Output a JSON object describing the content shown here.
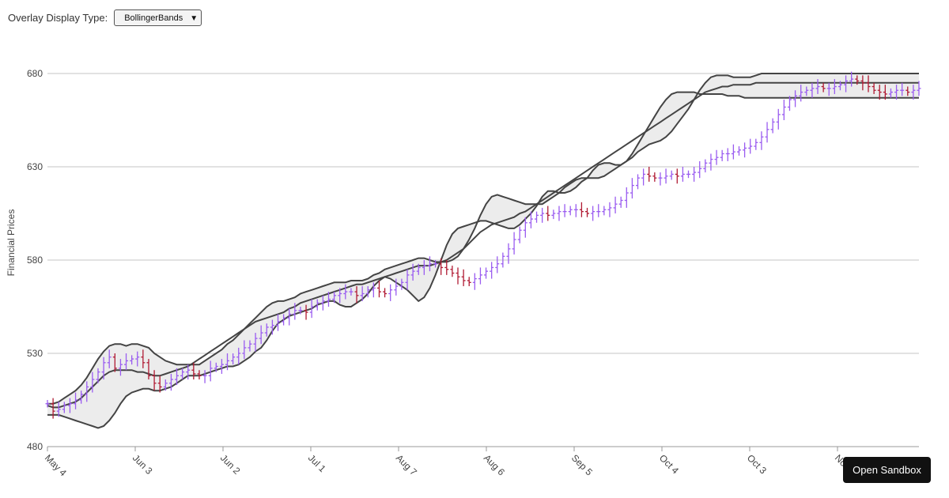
{
  "controls": {
    "overlay_label": "Overlay Display Type:",
    "overlay_selected": "BollingerBands"
  },
  "sandbox_button": "Open Sandbox",
  "colors": {
    "rising": "#9a5cf0",
    "falling": "#b01a33",
    "band_line": "#444444",
    "band_fill": "#ececec",
    "gridline": "#c4c4c4"
  },
  "chart_data": {
    "type": "ohlc",
    "overlay": "BollingerBands",
    "ylabel": "Financial Prices",
    "xlabel": "",
    "ylim": [
      480,
      680
    ],
    "y_ticks": [
      480,
      530,
      580,
      630,
      680
    ],
    "x_tick_labels": [
      "May 4",
      "Jun 3",
      "Jun 2",
      "Jul 1",
      "Aug 7",
      "Aug 6",
      "Sep 5",
      "Oct 4",
      "Oct 3",
      "Nov 2"
    ],
    "grid": true,
    "close_series": [
      503,
      499,
      500,
      502,
      503,
      505,
      508,
      512,
      516,
      520,
      525,
      528,
      522,
      524,
      526,
      527,
      528,
      525,
      518,
      514,
      512,
      514,
      516,
      518,
      520,
      521,
      519,
      518,
      518,
      522,
      523,
      524,
      526,
      528,
      530,
      533,
      535,
      538,
      541,
      544,
      545,
      547,
      549,
      551,
      553,
      553,
      552,
      555,
      557,
      558,
      559,
      561,
      562,
      563,
      563,
      561,
      562,
      564,
      565,
      563,
      562,
      564,
      566,
      568,
      572,
      574,
      576,
      577,
      578,
      578,
      576,
      575,
      573,
      571,
      569,
      568,
      570,
      572,
      574,
      576,
      578,
      582,
      586,
      591,
      596,
      600,
      602,
      604,
      605,
      604,
      605,
      606,
      606,
      607,
      607,
      606,
      605,
      606,
      606,
      607,
      608,
      610,
      612,
      616,
      620,
      624,
      626,
      625,
      624,
      624,
      625,
      626,
      625,
      626,
      626,
      627,
      629,
      632,
      634,
      635,
      637,
      637,
      638,
      639,
      640,
      641,
      643,
      646,
      650,
      654,
      658,
      662,
      666,
      668,
      670,
      671,
      672,
      673,
      672,
      672,
      673,
      674,
      676,
      677,
      676,
      675,
      673,
      671,
      670,
      669,
      670,
      671,
      671,
      670,
      671,
      672
    ],
    "bollinger_upper": [
      503,
      503,
      504,
      506,
      508,
      510,
      513,
      517,
      522,
      527,
      531,
      534,
      535,
      535,
      534,
      535,
      535,
      534,
      533,
      530,
      528,
      526,
      525,
      524,
      524,
      524,
      524,
      524,
      526,
      528,
      530,
      532,
      535,
      537,
      540,
      543,
      546,
      549,
      552,
      555,
      557,
      558,
      558,
      559,
      560,
      562,
      563,
      564,
      565,
      566,
      567,
      568,
      568,
      568,
      569,
      569,
      569,
      570,
      572,
      573,
      575,
      576,
      577,
      578,
      579,
      580,
      581,
      581,
      580,
      579,
      579,
      579,
      580,
      582,
      586,
      591,
      597,
      604,
      610,
      614,
      615,
      614,
      613,
      612,
      611,
      610,
      610,
      610,
      610,
      612,
      614,
      616,
      619,
      621,
      623,
      624,
      624,
      624,
      624,
      625,
      627,
      629,
      631,
      633,
      635,
      638,
      640,
      642,
      643,
      644,
      646,
      649,
      653,
      657,
      661,
      666,
      671,
      675,
      678,
      679,
      679,
      679,
      678,
      678,
      678,
      678,
      679,
      680,
      680,
      680,
      680,
      680,
      680,
      680,
      680,
      680,
      680,
      680,
      680,
      680,
      680,
      680,
      680,
      680,
      680,
      680,
      680,
      680,
      680,
      680,
      680,
      680,
      680,
      680,
      680,
      680
    ],
    "bollinger_middle": [
      502,
      501,
      501,
      502,
      503,
      504,
      506,
      509,
      512,
      515,
      518,
      520,
      521,
      521,
      521,
      521,
      520,
      520,
      519,
      518,
      518,
      519,
      520,
      521,
      522,
      523,
      525,
      527,
      529,
      531,
      533,
      535,
      537,
      539,
      541,
      543,
      545,
      547,
      548,
      549,
      550,
      551,
      552,
      554,
      555,
      557,
      558,
      559,
      560,
      561,
      562,
      563,
      564,
      565,
      566,
      567,
      567,
      568,
      569,
      570,
      571,
      572,
      573,
      574,
      575,
      576,
      577,
      577,
      577,
      578,
      579,
      580,
      582,
      584,
      586,
      589,
      592,
      595,
      597,
      599,
      600,
      601,
      602,
      603,
      605,
      606,
      608,
      610,
      612,
      614,
      616,
      618,
      620,
      622,
      624,
      626,
      628,
      630,
      632,
      634,
      636,
      638,
      640,
      642,
      644,
      646,
      648,
      650,
      652,
      654,
      656,
      658,
      660,
      662,
      664,
      666,
      668,
      670,
      671,
      672,
      673,
      673,
      674,
      674,
      674,
      674,
      675,
      675,
      675,
      675,
      675,
      675,
      675,
      675,
      675,
      675,
      675,
      675,
      675,
      675,
      675,
      675,
      675,
      675,
      675,
      675,
      675,
      675,
      675,
      675,
      675,
      675,
      675,
      675,
      675,
      675
    ],
    "bollinger_lower": [
      497,
      497,
      497,
      496,
      495,
      494,
      493,
      492,
      491,
      490,
      491,
      494,
      498,
      503,
      507,
      509,
      510,
      511,
      511,
      510,
      510,
      511,
      512,
      514,
      516,
      518,
      518,
      518,
      519,
      520,
      521,
      522,
      523,
      523,
      524,
      526,
      528,
      531,
      533,
      537,
      542,
      546,
      548,
      550,
      551,
      552,
      553,
      554,
      556,
      557,
      558,
      558,
      556,
      555,
      555,
      557,
      559,
      562,
      566,
      569,
      571,
      570,
      568,
      566,
      564,
      561,
      558,
      560,
      565,
      572,
      580,
      588,
      594,
      597,
      598,
      599,
      600,
      601,
      601,
      600,
      599,
      598,
      597,
      597,
      599,
      602,
      605,
      609,
      614,
      617,
      617,
      616,
      616,
      617,
      619,
      622,
      624,
      628,
      631,
      632,
      632,
      631,
      631,
      633,
      637,
      642,
      647,
      652,
      657,
      662,
      666,
      669,
      670,
      670,
      670,
      670,
      669,
      669,
      669,
      669,
      669,
      668,
      668,
      668,
      667,
      667,
      667,
      667,
      667,
      667,
      667,
      667,
      667,
      667,
      667,
      667,
      667,
      667,
      667,
      667,
      667,
      667,
      667,
      667,
      667,
      667,
      667,
      667,
      667,
      667,
      667,
      667,
      667,
      667,
      667,
      667
    ]
  }
}
